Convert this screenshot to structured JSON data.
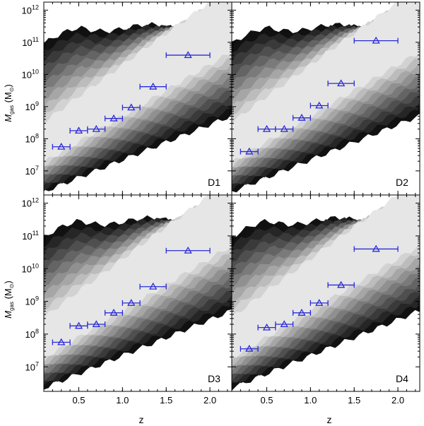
{
  "chart_data": {
    "type": "scatter",
    "xlabel": "z",
    "ylabel_main": "M",
    "ylabel_sub": "gas",
    "ylabel_unit": " (M",
    "ylabel_unit_sub": "⊙",
    "ylabel_close": ")",
    "xlim": [
      0.1,
      2.25
    ],
    "ylim_log10": [
      6.25,
      12.25
    ],
    "x_ticks": [
      {
        "value": 0.5,
        "label": "0.5"
      },
      {
        "value": 1.0,
        "label": "1.0"
      },
      {
        "value": 1.5,
        "label": "1.5"
      },
      {
        "value": 2.0,
        "label": "2.0"
      }
    ],
    "y_ticks": [
      {
        "exp": 7,
        "base": "10",
        "sup": "7"
      },
      {
        "exp": 8,
        "base": "10",
        "sup": "8"
      },
      {
        "exp": 9,
        "base": "10",
        "sup": "9"
      },
      {
        "exp": 10,
        "base": "10",
        "sup": "10"
      },
      {
        "exp": 11,
        "base": "10",
        "sup": "11"
      },
      {
        "exp": 12,
        "base": "10",
        "sup": "12"
      }
    ],
    "marker_color": "#2a2ad8",
    "contour_colors": [
      "#111111",
      "#262626",
      "#3a3a3a",
      "#4f4f4f",
      "#646464",
      "#7a7a7a",
      "#909090",
      "#a6a6a6",
      "#bcbcbc",
      "#d2d2d2",
      "#e6e6e6"
    ],
    "panels": [
      {
        "name": "D1",
        "points": [
          {
            "z": 0.3,
            "xerr": 0.1,
            "log_mgas": 7.75
          },
          {
            "z": 0.5,
            "xerr": 0.1,
            "log_mgas": 8.25
          },
          {
            "z": 0.7,
            "xerr": 0.1,
            "log_mgas": 8.3
          },
          {
            "z": 0.9,
            "xerr": 0.1,
            "log_mgas": 8.63
          },
          {
            "z": 1.1,
            "xerr": 0.1,
            "log_mgas": 8.97
          },
          {
            "z": 1.35,
            "xerr": 0.15,
            "log_mgas": 9.62
          },
          {
            "z": 1.75,
            "xerr": 0.25,
            "log_mgas": 10.6
          }
        ]
      },
      {
        "name": "D2",
        "points": [
          {
            "z": 0.3,
            "xerr": 0.1,
            "log_mgas": 7.6
          },
          {
            "z": 0.5,
            "xerr": 0.1,
            "log_mgas": 8.3
          },
          {
            "z": 0.7,
            "xerr": 0.1,
            "log_mgas": 8.3
          },
          {
            "z": 0.9,
            "xerr": 0.1,
            "log_mgas": 8.65
          },
          {
            "z": 1.1,
            "xerr": 0.1,
            "log_mgas": 9.03
          },
          {
            "z": 1.35,
            "xerr": 0.15,
            "log_mgas": 9.72
          },
          {
            "z": 1.75,
            "xerr": 0.25,
            "log_mgas": 11.05
          }
        ]
      },
      {
        "name": "D3",
        "points": [
          {
            "z": 0.3,
            "xerr": 0.1,
            "log_mgas": 7.75
          },
          {
            "z": 0.5,
            "xerr": 0.1,
            "log_mgas": 8.25
          },
          {
            "z": 0.7,
            "xerr": 0.1,
            "log_mgas": 8.3
          },
          {
            "z": 0.9,
            "xerr": 0.1,
            "log_mgas": 8.65
          },
          {
            "z": 1.1,
            "xerr": 0.1,
            "log_mgas": 8.95
          },
          {
            "z": 1.35,
            "xerr": 0.15,
            "log_mgas": 9.45
          },
          {
            "z": 1.75,
            "xerr": 0.25,
            "log_mgas": 10.55
          }
        ]
      },
      {
        "name": "D4",
        "points": [
          {
            "z": 0.3,
            "xerr": 0.1,
            "log_mgas": 7.55
          },
          {
            "z": 0.5,
            "xerr": 0.1,
            "log_mgas": 8.2
          },
          {
            "z": 0.7,
            "xerr": 0.1,
            "log_mgas": 8.3
          },
          {
            "z": 0.9,
            "xerr": 0.1,
            "log_mgas": 8.65
          },
          {
            "z": 1.1,
            "xerr": 0.1,
            "log_mgas": 8.95
          },
          {
            "z": 1.35,
            "xerr": 0.15,
            "log_mgas": 9.5
          },
          {
            "z": 1.75,
            "xerr": 0.25,
            "log_mgas": 10.6
          }
        ]
      }
    ]
  }
}
